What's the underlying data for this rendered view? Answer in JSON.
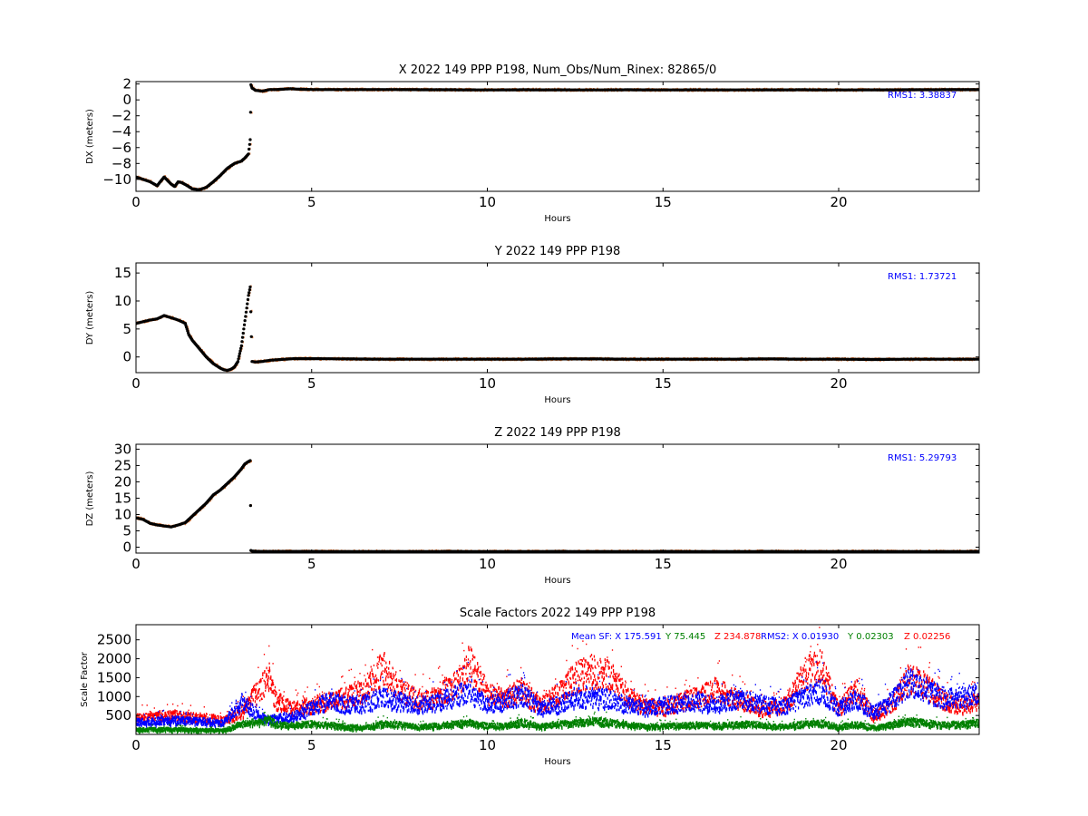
{
  "chart_data": [
    {
      "type": "scatter",
      "title": "X 2022 149 PPP  P198, Num_Obs/Num_Rinex: 82865/0",
      "xlabel": "Hours",
      "ylabel": "DX (meters)",
      "xlim": [
        0,
        24
      ],
      "ylim": [
        -11.5,
        2.3
      ],
      "yticks": [
        -10,
        -8,
        -6,
        -4,
        -2,
        0,
        2
      ],
      "xticks": [
        0,
        5,
        10,
        15,
        20
      ],
      "grid": false,
      "annotation": "RMS1:  3.38837",
      "annotation_color": "#0000ff",
      "series": [
        {
          "color": "#000000",
          "x": [
            0.0,
            0.2,
            0.4,
            0.6,
            0.8,
            1.0,
            1.1,
            1.2,
            1.3,
            1.5,
            1.6,
            1.8,
            2.0,
            2.2,
            2.4,
            2.6,
            2.8,
            3.0,
            3.1,
            3.2,
            3.25,
            3.27,
            3.3,
            3.4,
            3.6,
            3.8,
            4.0,
            4.2,
            4.4,
            4.6,
            5.0,
            6.0,
            7.0,
            8.0,
            9.0,
            10.0,
            11.0,
            12.0,
            13.0,
            14.0,
            15.0,
            16.0,
            17.0,
            18.0,
            19.0,
            20.0,
            21.0,
            22.0,
            23.0,
            24.0
          ],
          "y": [
            -9.7,
            -10.0,
            -10.3,
            -10.8,
            -9.7,
            -10.6,
            -10.9,
            -10.3,
            -10.4,
            -10.9,
            -11.2,
            -11.3,
            -11.0,
            -10.3,
            -9.5,
            -8.6,
            -8.0,
            -7.7,
            -7.3,
            -6.8,
            -5.0,
            1.9,
            1.5,
            1.2,
            1.1,
            1.3,
            1.3,
            1.35,
            1.4,
            1.35,
            1.3,
            1.3,
            1.3,
            1.28,
            1.27,
            1.25,
            1.27,
            1.26,
            1.25,
            1.27,
            1.25,
            1.26,
            1.25,
            1.26,
            1.27,
            1.25,
            1.26,
            1.27,
            1.28,
            1.28
          ]
        }
      ]
    },
    {
      "type": "scatter",
      "title": "Y 2022 149 PPP  P198",
      "xlabel": "Hours",
      "ylabel": "DY (meters)",
      "xlim": [
        0,
        24
      ],
      "ylim": [
        -2.8,
        16.8
      ],
      "yticks": [
        0,
        5,
        10,
        15
      ],
      "xticks": [
        0,
        5,
        10,
        15,
        20
      ],
      "grid": false,
      "annotation": "RMS1:  1.73721",
      "annotation_color": "#0000ff",
      "series": [
        {
          "color": "#000000",
          "x": [
            0.0,
            0.2,
            0.4,
            0.6,
            0.8,
            1.0,
            1.2,
            1.4,
            1.5,
            1.6,
            1.8,
            2.0,
            2.2,
            2.4,
            2.5,
            2.6,
            2.7,
            2.8,
            2.9,
            3.0,
            3.1,
            3.2,
            3.25,
            3.3,
            3.4,
            3.6,
            3.8,
            4.0,
            4.5,
            5.0,
            6.0,
            7.0,
            8.0,
            9.0,
            10.0,
            11.0,
            12.0,
            13.0,
            14.0,
            15.0,
            16.0,
            17.0,
            18.0,
            19.0,
            20.0,
            21.0,
            22.0,
            23.0,
            24.0
          ],
          "y": [
            6.0,
            6.3,
            6.6,
            6.8,
            7.4,
            7.0,
            6.6,
            6.0,
            4.0,
            3.0,
            1.5,
            0.0,
            -1.2,
            -2.0,
            -2.3,
            -2.4,
            -2.2,
            -1.8,
            -0.8,
            2.0,
            6.5,
            11.0,
            12.5,
            -0.8,
            -0.9,
            -0.8,
            -0.6,
            -0.5,
            -0.3,
            -0.3,
            -0.35,
            -0.4,
            -0.4,
            -0.4,
            -0.4,
            -0.4,
            -0.35,
            -0.35,
            -0.4,
            -0.4,
            -0.4,
            -0.4,
            -0.35,
            -0.4,
            -0.4,
            -0.45,
            -0.4,
            -0.4,
            -0.4
          ]
        }
      ]
    },
    {
      "type": "scatter",
      "title": "Z 2022 149 PPP  P198",
      "xlabel": "Hours",
      "ylabel": "DZ (meters)",
      "xlim": [
        0,
        24
      ],
      "ylim": [
        -1.8,
        31.5
      ],
      "yticks": [
        0,
        5,
        10,
        15,
        20,
        25,
        30
      ],
      "xticks": [
        0,
        5,
        10,
        15,
        20
      ],
      "grid": false,
      "annotation": "RMS1:  5.29793",
      "annotation_color": "#0000ff",
      "series": [
        {
          "color": "#000000",
          "x": [
            0.0,
            0.2,
            0.4,
            0.6,
            0.8,
            1.0,
            1.2,
            1.4,
            1.6,
            1.8,
            2.0,
            2.2,
            2.4,
            2.6,
            2.8,
            3.0,
            3.1,
            3.2,
            3.25,
            3.27,
            3.3,
            3.5,
            4.0,
            5.0,
            6.0,
            7.0,
            8.0,
            9.0,
            10.0,
            11.0,
            12.0,
            13.0,
            14.0,
            15.0,
            16.0,
            17.0,
            18.0,
            19.0,
            20.0,
            21.0,
            22.0,
            23.0,
            24.0
          ],
          "y": [
            9.0,
            8.5,
            7.3,
            6.8,
            6.5,
            6.2,
            6.8,
            7.5,
            9.5,
            11.5,
            13.5,
            16.0,
            17.5,
            19.5,
            21.5,
            24.0,
            25.5,
            26.2,
            26.5,
            -1.0,
            -1.2,
            -1.3,
            -1.3,
            -1.3,
            -1.35,
            -1.35,
            -1.35,
            -1.3,
            -1.35,
            -1.35,
            -1.3,
            -1.35,
            -1.35,
            -1.3,
            -1.35,
            -1.35,
            -1.3,
            -1.35,
            -1.35,
            -1.3,
            -1.35,
            -1.35,
            -1.3
          ]
        }
      ]
    },
    {
      "type": "scatter",
      "title": "Scale Factors 2022 149 PPP  P198",
      "xlabel": "Hours",
      "ylabel": "Scale Factor",
      "xlim": [
        0,
        24
      ],
      "ylim": [
        0,
        2900
      ],
      "yticks": [
        500,
        1000,
        1500,
        2000,
        2500
      ],
      "xticks": [
        0,
        5,
        10,
        15,
        20
      ],
      "grid": false,
      "annotations": [
        {
          "text": "Mean SF: X 175.591",
          "color": "#0000ff"
        },
        {
          "text": "Y  75.445",
          "color": "#008000"
        },
        {
          "text": "Z 234.878",
          "color": "#ff0000"
        },
        {
          "text": "RMS2: X  0.01930",
          "color": "#0000ff"
        },
        {
          "text": "Y  0.02303",
          "color": "#008000"
        },
        {
          "text": "Z  0.02256",
          "color": "#ff0000"
        }
      ],
      "series": [
        {
          "color": "#ff0000",
          "x": [
            0.0,
            0.5,
            1.0,
            1.5,
            2.0,
            2.5,
            3.0,
            3.5,
            3.8,
            4.0,
            4.5,
            5.0,
            5.5,
            6.0,
            6.5,
            7.0,
            7.5,
            8.0,
            8.5,
            9.0,
            9.5,
            10.0,
            10.5,
            11.0,
            11.5,
            12.0,
            12.5,
            13.0,
            13.5,
            14.0,
            14.5,
            15.0,
            15.5,
            16.0,
            16.5,
            17.0,
            17.5,
            18.0,
            18.5,
            19.0,
            19.5,
            20.0,
            20.5,
            21.0,
            21.5,
            22.0,
            22.5,
            23.0,
            23.5,
            24.0
          ],
          "y": [
            450,
            500,
            520,
            480,
            450,
            380,
            600,
            1200,
            1500,
            900,
            700,
            800,
            900,
            1000,
            1200,
            1800,
            1200,
            950,
            1000,
            1300,
            1900,
            1100,
            1000,
            1200,
            800,
            1100,
            1500,
            1700,
            1600,
            1000,
            800,
            700,
            900,
            1000,
            1200,
            1000,
            800,
            700,
            800,
            1600,
            1800,
            700,
            1200,
            500,
            800,
            1500,
            1300,
            900,
            800,
            900
          ]
        },
        {
          "color": "#0000ff",
          "x": [
            0.0,
            0.5,
            1.0,
            1.5,
            2.0,
            2.5,
            3.0,
            3.5,
            3.8,
            4.0,
            4.5,
            5.0,
            5.5,
            6.0,
            6.5,
            7.0,
            7.5,
            8.0,
            8.5,
            9.0,
            9.5,
            10.0,
            10.5,
            11.0,
            11.5,
            12.0,
            12.5,
            13.0,
            13.5,
            14.0,
            14.5,
            15.0,
            15.5,
            16.0,
            16.5,
            17.0,
            17.5,
            18.0,
            18.5,
            19.0,
            19.5,
            20.0,
            20.5,
            21.0,
            21.5,
            22.0,
            22.5,
            23.0,
            23.5,
            24.0
          ],
          "y": [
            350,
            380,
            400,
            380,
            360,
            320,
            900,
            500,
            400,
            450,
            500,
            700,
            900,
            800,
            850,
            1000,
            900,
            800,
            850,
            1000,
            1200,
            800,
            900,
            1100,
            700,
            800,
            1000,
            1000,
            950,
            800,
            700,
            800,
            850,
            900,
            800,
            950,
            900,
            800,
            750,
            1000,
            1200,
            700,
            1000,
            600,
            900,
            1400,
            1200,
            1000,
            1000,
            1100
          ]
        },
        {
          "color": "#008000",
          "x": [
            0.0,
            0.5,
            1.0,
            1.5,
            2.0,
            2.5,
            3.0,
            3.5,
            3.8,
            4.0,
            4.5,
            5.0,
            5.5,
            6.0,
            6.5,
            7.0,
            7.5,
            8.0,
            8.5,
            9.0,
            9.5,
            10.0,
            10.5,
            11.0,
            11.5,
            12.0,
            12.5,
            13.0,
            13.5,
            14.0,
            14.5,
            15.0,
            15.5,
            16.0,
            16.5,
            17.0,
            17.5,
            18.0,
            18.5,
            19.0,
            19.5,
            20.0,
            20.5,
            21.0,
            21.5,
            22.0,
            22.5,
            23.0,
            23.5,
            24.0
          ],
          "y": [
            150,
            160,
            160,
            150,
            140,
            130,
            300,
            350,
            400,
            300,
            250,
            300,
            280,
            220,
            200,
            300,
            280,
            230,
            250,
            300,
            330,
            250,
            260,
            350,
            230,
            300,
            320,
            380,
            350,
            280,
            230,
            250,
            260,
            280,
            250,
            280,
            300,
            250,
            230,
            300,
            320,
            230,
            300,
            200,
            280,
            380,
            320,
            280,
            300,
            330
          ]
        }
      ]
    }
  ]
}
